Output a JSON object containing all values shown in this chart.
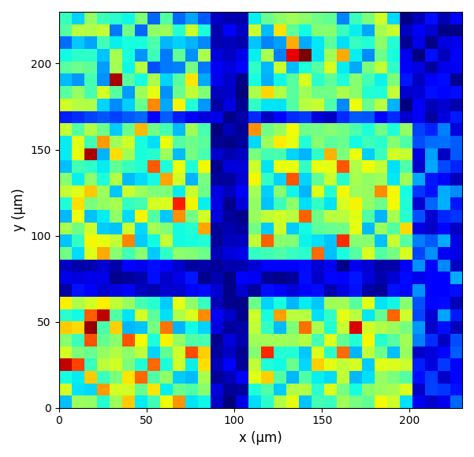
{
  "nx": 32,
  "ny": 32,
  "xmin": 0,
  "xmax": 230,
  "ymin": 0,
  "ymax": 230,
  "xlabel": "x (μm)",
  "ylabel": "y (μm)",
  "cmap": "jet",
  "xticks": [
    0,
    50,
    100,
    150,
    200
  ],
  "yticks": [
    0,
    50,
    100,
    150,
    200
  ],
  "seed": 7,
  "figsize": [
    6.01,
    5.79
  ],
  "dpi": 100
}
